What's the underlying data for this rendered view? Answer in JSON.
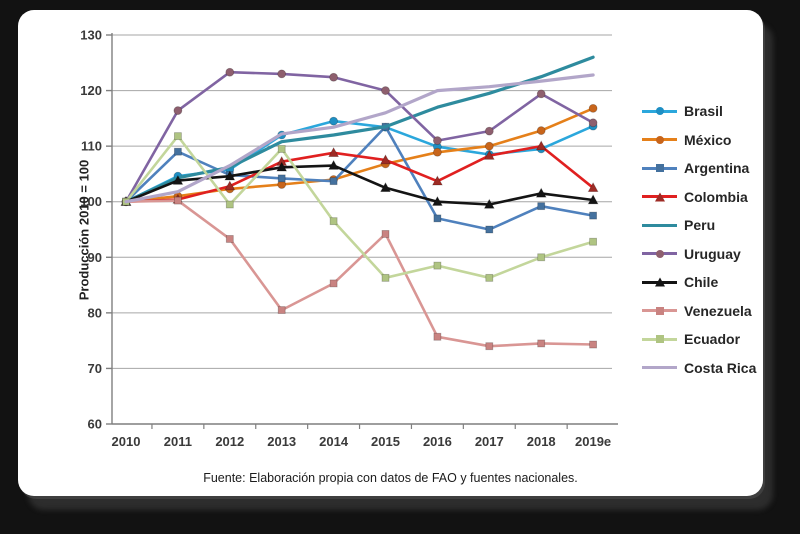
{
  "page": {
    "background": "#121212",
    "card_color": "#ffffff"
  },
  "chart_data": {
    "type": "line",
    "title": "",
    "ylabel": "Producción 2010 = 100",
    "xlabel": "",
    "categories": [
      "2010",
      "2011",
      "2012",
      "2013",
      "2014",
      "2015",
      "2016",
      "2017",
      "2018",
      "2019e"
    ],
    "ylim": [
      60,
      130
    ],
    "yticks": [
      60,
      70,
      80,
      90,
      100,
      110,
      120,
      130
    ],
    "grid": true,
    "legend_position": "right",
    "series": [
      {
        "name": "Brasil",
        "color": "#2BA7DC",
        "marker": "circle",
        "marker_color": "#1E8FC4",
        "values": [
          100,
          104.6,
          105.8,
          112.0,
          114.5,
          113.4,
          109.9,
          108.5,
          109.5,
          113.6
        ]
      },
      {
        "name": "México",
        "color": "#E5801A",
        "marker": "circle",
        "marker_color": "#C8651B",
        "values": [
          100,
          101.0,
          102.3,
          103.1,
          104.0,
          106.8,
          108.9,
          110.0,
          112.8,
          116.8
        ]
      },
      {
        "name": "Argentina",
        "color": "#4F81BD",
        "marker": "square",
        "marker_color": "#44719E",
        "values": [
          100,
          109.0,
          104.8,
          104.2,
          103.7,
          113.5,
          97.0,
          95.0,
          99.2,
          97.5
        ]
      },
      {
        "name": "Colombia",
        "color": "#E02020",
        "marker": "triangle",
        "marker_color": "#9E2B25",
        "values": [
          100,
          100.4,
          102.8,
          107.2,
          108.8,
          107.5,
          103.7,
          108.3,
          110.0,
          102.5
        ]
      },
      {
        "name": "Peru",
        "color": "#2E8B9E",
        "marker": "none",
        "marker_color": "#2E8B9E",
        "values": [
          100,
          104.3,
          106.2,
          110.8,
          112.0,
          113.5,
          117.0,
          119.5,
          122.5,
          126.0
        ]
      },
      {
        "name": "Uruguay",
        "color": "#8064A2",
        "marker": "circle",
        "marker_color": "#8E5F6E",
        "values": [
          100,
          116.4,
          123.3,
          123.0,
          122.4,
          120.0,
          111.0,
          112.7,
          119.4,
          114.2
        ]
      },
      {
        "name": "Chile",
        "color": "#141414",
        "marker": "triangle",
        "marker_color": "#141414",
        "values": [
          100,
          103.8,
          104.6,
          106.2,
          106.5,
          102.5,
          100.0,
          99.5,
          101.5,
          100.3
        ]
      },
      {
        "name": "Venezuela",
        "color": "#D99694",
        "marker": "square",
        "marker_color": "#C98381",
        "values": [
          100,
          100.2,
          93.3,
          80.5,
          85.3,
          94.2,
          75.7,
          74.0,
          74.5,
          74.3
        ]
      },
      {
        "name": "Ecuador",
        "color": "#C3D69B",
        "marker": "square",
        "marker_color": "#AFC482",
        "values": [
          100,
          111.8,
          99.5,
          109.5,
          96.5,
          86.3,
          88.5,
          86.3,
          90.0,
          92.8
        ]
      },
      {
        "name": "Costa Rica",
        "color": "#B2A6C9",
        "marker": "none",
        "marker_color": "#B2A6C9",
        "values": [
          100,
          101.8,
          106.5,
          112.2,
          113.4,
          116.0,
          120.0,
          120.7,
          121.7,
          122.8
        ]
      }
    ]
  },
  "footer": {
    "source": "Fuente: Elaboración propia con datos de FAO y fuentes nacionales."
  }
}
